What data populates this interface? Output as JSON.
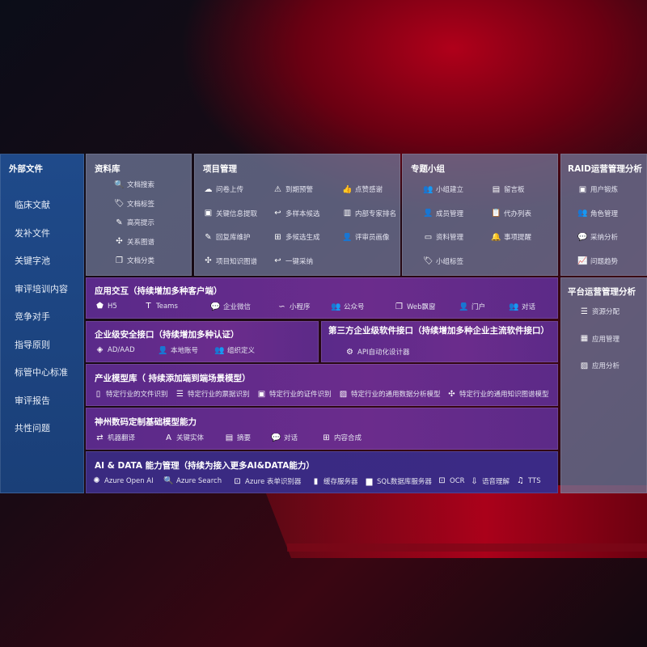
{
  "external": {
    "title": "外部文件",
    "items": [
      "临床文献",
      "发补文件",
      "关键字池",
      "审评培训内容",
      "竞争对手",
      "指导原则",
      "标管中心标准",
      "审评报告",
      "共性问题"
    ]
  },
  "library": {
    "title": "资料库",
    "items": [
      {
        "icon": "doc-search-icon",
        "glyph": "🔍",
        "label": "文档搜索"
      },
      {
        "icon": "tag-icon",
        "glyph": "🏷",
        "label": "文档标签"
      },
      {
        "icon": "pen-icon",
        "glyph": "✎",
        "label": "高亮提示"
      },
      {
        "icon": "graph-icon",
        "glyph": "✣",
        "label": "关系图谱"
      },
      {
        "icon": "copy-icon",
        "glyph": "❐",
        "label": "文档分类"
      }
    ]
  },
  "project": {
    "title": "项目管理",
    "items": [
      {
        "icon": "upload-cloud-icon",
        "glyph": "☁",
        "label": "问卷上传"
      },
      {
        "icon": "alarm-icon",
        "glyph": "⚠",
        "label": "到期预警"
      },
      {
        "icon": "thumb-up-icon",
        "glyph": "👍",
        "label": "点赞感谢"
      },
      {
        "icon": "extract-icon",
        "glyph": "▣",
        "label": "关键信息提取"
      },
      {
        "icon": "reply-icon",
        "glyph": "↩",
        "label": "多样本候选"
      },
      {
        "icon": "rank-icon",
        "glyph": "▥",
        "label": "内部专家排名"
      },
      {
        "icon": "edit-icon",
        "glyph": "✎",
        "label": "回复库维护"
      },
      {
        "icon": "puzzle-icon",
        "glyph": "⊞",
        "label": "多候选生成"
      },
      {
        "icon": "user-icon",
        "glyph": "👤",
        "label": "评审员画像"
      },
      {
        "icon": "graph-icon",
        "glyph": "✣",
        "label": "项目知识图谱"
      },
      {
        "icon": "reply-icon",
        "glyph": "↩",
        "label": "一键采纳"
      }
    ]
  },
  "group": {
    "title": "专题小组",
    "items": [
      {
        "icon": "users-icon",
        "glyph": "👥",
        "label": "小组建立"
      },
      {
        "icon": "bbs-icon",
        "glyph": "▤",
        "label": "留言板"
      },
      {
        "icon": "user-add-icon",
        "glyph": "👤",
        "label": "成员管理"
      },
      {
        "icon": "clipboard-icon",
        "glyph": "📋",
        "label": "代办列表"
      },
      {
        "icon": "folder-icon",
        "glyph": "▭",
        "label": "资料管理"
      },
      {
        "icon": "bell-icon",
        "glyph": "🔔",
        "label": "事项提醒"
      },
      {
        "icon": "tag-icon",
        "glyph": "🏷",
        "label": "小组标签"
      }
    ]
  },
  "raid": {
    "title": "RAID运营管理分析",
    "items": [
      {
        "icon": "id-card-icon",
        "glyph": "▣",
        "label": "用户锻炼"
      },
      {
        "icon": "users-icon",
        "glyph": "👥",
        "label": "角色管理"
      },
      {
        "icon": "qa-icon",
        "glyph": "💬",
        "label": "采纳分析"
      },
      {
        "icon": "trend-icon",
        "glyph": "📈",
        "label": "问题趋势"
      }
    ]
  },
  "platform": {
    "title": "平台运营管理分析",
    "items": [
      {
        "icon": "checklist-icon",
        "glyph": "☰",
        "label": "资源分配"
      },
      {
        "icon": "apps-icon",
        "glyph": "▦",
        "label": "应用管理"
      },
      {
        "icon": "analytics-icon",
        "glyph": "▨",
        "label": "应用分析"
      }
    ]
  },
  "interaction": {
    "title": "应用交互（持续增加多种客户端）",
    "items": [
      {
        "icon": "html5-icon",
        "glyph": "⬟",
        "label": "H5"
      },
      {
        "icon": "teams-icon",
        "glyph": "T",
        "label": "Teams"
      },
      {
        "icon": "wecom-icon",
        "glyph": "💬",
        "label": "企业微信"
      },
      {
        "icon": "miniprogram-icon",
        "glyph": "∽",
        "label": "小程序"
      },
      {
        "icon": "users-icon",
        "glyph": "👥",
        "label": "公众号"
      },
      {
        "icon": "window-icon",
        "glyph": "❐",
        "label": "Web飘窗"
      },
      {
        "icon": "portal-icon",
        "glyph": "👤",
        "label": "门户"
      },
      {
        "icon": "chat-users-icon",
        "glyph": "👥",
        "label": "对话"
      }
    ]
  },
  "security": {
    "title": "企业级安全接口（持续增加多种认证）",
    "items": [
      {
        "icon": "ad-icon",
        "glyph": "◈",
        "label": "AD/AAD"
      },
      {
        "icon": "local-user-icon",
        "glyph": "👤",
        "label": "本地账号"
      },
      {
        "icon": "org-icon",
        "glyph": "👥",
        "label": "组织定义"
      }
    ]
  },
  "thirdparty": {
    "title": "第三方企业级软件接口（持续增加多种企业主流软件接口）",
    "items": [
      {
        "icon": "gear-icon",
        "glyph": "⚙",
        "label": "API自动化设计器"
      }
    ]
  },
  "industry": {
    "title": "产业模型库（ 持续添加端到端场景模型）",
    "items": [
      {
        "icon": "file-icon",
        "glyph": "▯",
        "label": "特定行业的文件识别"
      },
      {
        "icon": "receipt-icon",
        "glyph": "☰",
        "label": "特定行业的票据识别"
      },
      {
        "icon": "id-card-icon",
        "glyph": "▣",
        "label": "特定行业的证件识别"
      },
      {
        "icon": "chart-icon",
        "glyph": "▨",
        "label": "特定行业的通用数据分析模型"
      },
      {
        "icon": "graph-icon",
        "glyph": "✣",
        "label": "特定行业的通用知识图谱模型"
      }
    ]
  },
  "base": {
    "title": "神州数码定制基础模型能力",
    "items": [
      {
        "icon": "translate-icon",
        "glyph": "⇄",
        "label": "机器翻译"
      },
      {
        "icon": "entity-icon",
        "glyph": "A",
        "label": "关键实体"
      },
      {
        "icon": "summary-icon",
        "glyph": "▤",
        "label": "摘要"
      },
      {
        "icon": "chat-icon",
        "glyph": "💬",
        "label": "对话"
      },
      {
        "icon": "compose-icon",
        "glyph": "⊞",
        "label": "内容合成"
      }
    ]
  },
  "ai": {
    "title": "AI & DATA 能力管理（持续为接入更多AI&DATA能力）",
    "items": [
      {
        "icon": "openai-icon",
        "glyph": "✺",
        "label": "Azure Open AI"
      },
      {
        "icon": "search-icon",
        "glyph": "🔍",
        "label": "Azure Search"
      },
      {
        "icon": "form-icon",
        "glyph": "⊡",
        "label": "Azure 表单识别器"
      },
      {
        "icon": "cache-icon",
        "glyph": "▮",
        "label": "缓存服务器"
      },
      {
        "icon": "database-icon",
        "glyph": "▆",
        "label": "SQL数据库服务器"
      },
      {
        "icon": "ocr-icon",
        "glyph": "⊡",
        "label": "OCR"
      },
      {
        "icon": "speech-icon",
        "glyph": "⇩",
        "label": "语音理解"
      },
      {
        "icon": "tts-icon",
        "glyph": "♫",
        "label": "TTS"
      }
    ]
  }
}
